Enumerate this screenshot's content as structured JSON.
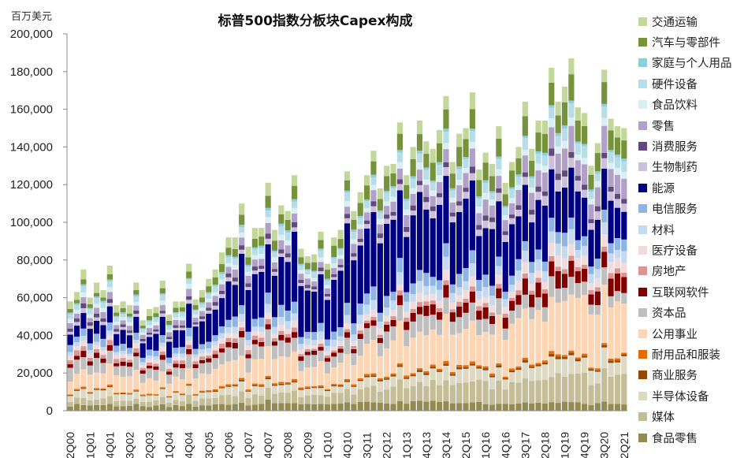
{
  "chart_data": {
    "type": "bar",
    "stacked": true,
    "title": "标普500指数分板块Capex构成",
    "ylabel": "百万美元",
    "xlabel": "",
    "ylim": [
      0,
      200000
    ],
    "yticks": [
      "0",
      "20,000",
      "40,000",
      "60,000",
      "80,000",
      "100,000",
      "120,000",
      "140,000",
      "160,000",
      "180,000",
      "200,000"
    ],
    "ytick_values": [
      0,
      20000,
      40000,
      60000,
      80000,
      100000,
      120000,
      140000,
      160000,
      180000,
      200000
    ],
    "xtick_labels": [
      "2Q00",
      "1Q01",
      "4Q01",
      "3Q02",
      "2Q03",
      "1Q04",
      "4Q04",
      "3Q05",
      "2Q06",
      "1Q07",
      "4Q07",
      "3Q08",
      "2Q09",
      "1Q10",
      "4Q10",
      "3Q11",
      "2Q12",
      "1Q13",
      "4Q13",
      "3Q14",
      "2Q15",
      "1Q16",
      "4Q16",
      "3Q17",
      "2Q18",
      "1Q19",
      "4Q19",
      "3Q20",
      "2Q21"
    ],
    "legend_position": "right",
    "grid": false,
    "categories": [
      "2Q00",
      "3Q00",
      "4Q00",
      "1Q01",
      "2Q01",
      "3Q01",
      "4Q01",
      "1Q02",
      "2Q02",
      "3Q02",
      "4Q02",
      "1Q03",
      "2Q03",
      "3Q03",
      "4Q03",
      "1Q04",
      "2Q04",
      "3Q04",
      "4Q04",
      "1Q05",
      "2Q05",
      "3Q05",
      "4Q05",
      "1Q06",
      "2Q06",
      "3Q06",
      "4Q06",
      "1Q07",
      "2Q07",
      "3Q07",
      "4Q07",
      "1Q08",
      "2Q08",
      "3Q08",
      "4Q08",
      "1Q09",
      "2Q09",
      "3Q09",
      "4Q09",
      "1Q10",
      "2Q10",
      "3Q10",
      "4Q10",
      "1Q11",
      "2Q11",
      "3Q11",
      "4Q11",
      "1Q12",
      "2Q12",
      "3Q12",
      "4Q12",
      "1Q13",
      "2Q13",
      "3Q13",
      "4Q13",
      "1Q14",
      "2Q14",
      "3Q14",
      "4Q14",
      "1Q15",
      "2Q15",
      "3Q15",
      "4Q15",
      "1Q16",
      "2Q16",
      "3Q16",
      "4Q16",
      "1Q17",
      "2Q17",
      "3Q17",
      "4Q17",
      "1Q18",
      "2Q18",
      "3Q18",
      "4Q18",
      "1Q19",
      "2Q19",
      "3Q19",
      "4Q19",
      "1Q20",
      "2Q20",
      "3Q20",
      "4Q20",
      "1Q21",
      "2Q21"
    ],
    "totals": [
      58000,
      63000,
      75000,
      60000,
      68000,
      64000,
      77000,
      56000,
      58000,
      56000,
      68000,
      48000,
      54000,
      55000,
      69000,
      51000,
      58000,
      58000,
      78000,
      59000,
      64000,
      70000,
      75000,
      84000,
      92000,
      92000,
      110000,
      87000,
      97000,
      97000,
      121000,
      96000,
      109000,
      106000,
      125000,
      86000,
      82000,
      83000,
      95000,
      78000,
      92000,
      96000,
      127000,
      106000,
      116000,
      125000,
      138000,
      118000,
      130000,
      131000,
      153000,
      125000,
      140000,
      154000,
      143000,
      139000,
      149000,
      167000,
      132000,
      147000,
      150000,
      169000,
      128000,
      137000,
      131000,
      151000,
      121000,
      132000,
      140000,
      164000,
      139000,
      154000,
      154000,
      182000,
      164000,
      172000,
      187000,
      161000,
      158000,
      130000,
      142000,
      181000,
      155000,
      151000,
      150000
    ],
    "series": [
      {
        "name": "食品零售",
        "color": "#948B54",
        "share": [
          0.05,
          0.04,
          0.03
        ]
      },
      {
        "name": "媒体",
        "color": "#C4BD97",
        "share": [
          0.05,
          0.06,
          0.11
        ]
      },
      {
        "name": "半导体设备",
        "color": "#DDD9C3",
        "share": [
          0.07,
          0.04,
          0.06
        ]
      },
      {
        "name": "商业服务",
        "color": "#974806",
        "share": [
          0.007,
          0.007,
          0.008
        ]
      },
      {
        "name": "耐用品和服装",
        "color": "#E36C09",
        "share": [
          0.01,
          0.008,
          0.008
        ]
      },
      {
        "name": "公用事业",
        "color": "#FCD5B4",
        "share": [
          0.15,
          0.12,
          0.22
        ]
      },
      {
        "name": "资本品",
        "color": "#BFBFBF",
        "share": [
          0.11,
          0.07,
          0.05
        ]
      },
      {
        "name": "互联网软件",
        "color": "#800000",
        "share": [
          0.04,
          0.025,
          0.065
        ]
      },
      {
        "name": "房地产",
        "color": "#DA9694",
        "share": [
          0.04,
          0.015,
          0.02
        ]
      },
      {
        "name": "医疗设备",
        "color": "#F2DCDB",
        "share": [
          0.04,
          0.025,
          0.04
        ]
      },
      {
        "name": "材料",
        "color": "#C5D9F1",
        "share": [
          0.03,
          0.04,
          0.04
        ]
      },
      {
        "name": "电信服务",
        "color": "#8DB4E2",
        "share": [
          0.06,
          0.05,
          0.04
        ]
      },
      {
        "name": "能源",
        "color": "#000080",
        "share": [
          0.1,
          0.33,
          0.13
        ]
      },
      {
        "name": "生物制药",
        "color": "#CCC0DA",
        "share": [
          0.03,
          0.02,
          0.04
        ]
      },
      {
        "name": "消费服务",
        "color": "#604A7B",
        "share": [
          0.03,
          0.02,
          0.02
        ]
      },
      {
        "name": "零售",
        "color": "#B1A0C7",
        "share": [
          0.05,
          0.04,
          0.08
        ]
      },
      {
        "name": "食品饮料",
        "color": "#DAEEF3",
        "share": [
          0.035,
          0.025,
          0.025
        ]
      },
      {
        "name": "硬件设备",
        "color": "#B7DEE8",
        "share": [
          0.04,
          0.035,
          0.04
        ]
      },
      {
        "name": "家庭与个人用品",
        "color": "#92CDDC",
        "share": [
          0.015,
          0.01,
          0.01
        ]
      },
      {
        "name": "汽车与零部件",
        "color": "#76933C",
        "share": [
          0.03,
          0.06,
          0.08
        ]
      },
      {
        "name": "交通运输",
        "color": "#C4D79B",
        "share": [
          0.08,
          0.05,
          0.05
        ]
      }
    ]
  },
  "legend": [
    {
      "label": "交通运输",
      "color": "#C4D79B"
    },
    {
      "label": "汽车与零部件",
      "color": "#76933C"
    },
    {
      "label": "家庭与个人用品",
      "color": "#92CDDC"
    },
    {
      "label": "硬件设备",
      "color": "#B7DEE8"
    },
    {
      "label": "食品饮料",
      "color": "#DAEEF3"
    },
    {
      "label": "零售",
      "color": "#B1A0C7"
    },
    {
      "label": "消费服务",
      "color": "#604A7B"
    },
    {
      "label": "生物制药",
      "color": "#CCC0DA"
    },
    {
      "label": "能源",
      "color": "#000080"
    },
    {
      "label": "电信服务",
      "color": "#8DB4E2"
    },
    {
      "label": "材料",
      "color": "#C5D9F1"
    },
    {
      "label": "医疗设备",
      "color": "#F2DCDB"
    },
    {
      "label": "房地产",
      "color": "#DA9694"
    },
    {
      "label": "互联网软件",
      "color": "#800000"
    },
    {
      "label": "资本品",
      "color": "#BFBFBF"
    },
    {
      "label": "公用事业",
      "color": "#FCD5B4"
    },
    {
      "label": "耐用品和服装",
      "color": "#E36C09"
    },
    {
      "label": "商业服务",
      "color": "#974806"
    },
    {
      "label": "半导体设备",
      "color": "#DDD9C3"
    },
    {
      "label": "媒体",
      "color": "#C4BD97"
    },
    {
      "label": "食品零售",
      "color": "#948B54"
    }
  ]
}
